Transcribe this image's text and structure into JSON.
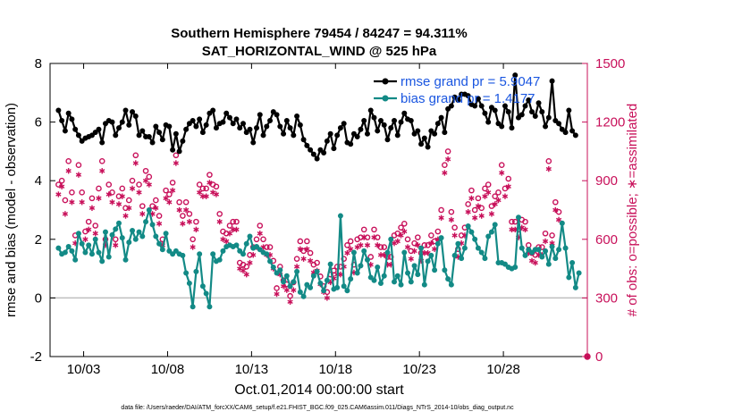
{
  "chart_data": {
    "type": "line",
    "title": "Southern Hemisphere 79454 / 84247 = 94.311%",
    "subtitle": "SAT_HORIZONTAL_WIND @ 525 hPa",
    "xlabel": "Oct.01,2014 00:00:00 start",
    "ylabel": "rmse and bias (model - observation)",
    "ylabel_right": "# of obs: o=possible; ∗=assimilated",
    "footnote": "data file: /Users/raeder/DAI/ATM_forcXX/CAM6_setup/f.e21.FHIST_BGC.f09_025.CAM6assim.011/Diags_NTrS_2014-10/obs_diag_output.nc",
    "x_ticks": [
      "10/03",
      "10/08",
      "10/13",
      "10/18",
      "10/23",
      "10/28"
    ],
    "y_ticks": [
      -2,
      0,
      2,
      4,
      6,
      8
    ],
    "y2_ticks": [
      0,
      300,
      600,
      900,
      1200,
      1500
    ],
    "ylim": [
      -2,
      8
    ],
    "y2lim": [
      0,
      1500
    ],
    "xlim_days": [
      1,
      33
    ],
    "grid": false,
    "legend_position": "top-right",
    "colors": {
      "rmse": "#000000",
      "bias": "#138a86",
      "obs": "#c8105a",
      "zero_line": "#bfbfbf"
    },
    "series": [
      {
        "name": "rmse grand pr = 5.9047",
        "values": [
          6.4,
          6.05,
          5.7,
          6.3,
          6.1,
          5.75,
          5.55,
          5.35,
          5.45,
          5.5,
          5.55,
          5.65,
          5.75,
          5.3,
          5.95,
          6.05,
          6.0,
          5.55,
          5.8,
          6.0,
          6.4,
          5.9,
          6.35,
          6.2,
          5.55,
          5.7,
          5.5,
          5.5,
          5.3,
          5.85,
          5.65,
          5.4,
          5.9,
          5.85,
          5.05,
          5.6,
          5.0,
          5.35,
          5.75,
          5.95,
          6.05,
          5.85,
          6.1,
          5.65,
          5.9,
          6.3,
          6.4,
          5.8,
          5.95,
          6.0,
          6.3,
          6.15,
          5.95,
          6.1,
          5.8,
          5.95,
          5.65,
          5.75,
          5.3,
          5.8,
          6.25,
          5.55,
          5.85,
          6.05,
          6.35,
          6.25,
          5.85,
          5.6,
          6.05,
          5.8,
          5.55,
          6.2,
          5.9,
          5.4,
          5.2,
          5.05,
          4.9,
          4.75,
          5.05,
          4.95,
          5.35,
          5.6,
          5.1,
          5.55,
          5.8,
          5.95,
          5.3,
          5.25,
          5.6,
          5.5,
          5.75,
          6.05,
          5.6,
          6.4,
          6.15,
          5.7,
          6.05,
          5.9,
          5.4,
          5.8,
          6.05,
          5.55,
          6.0,
          6.3,
          6.1,
          6.05,
          5.6,
          5.7,
          5.25,
          5.45,
          5.15,
          5.7,
          5.6,
          5.95,
          6.15,
          5.65,
          6.45,
          6.55,
          6.85,
          6.75,
          6.95,
          6.95,
          6.9,
          6.6,
          6.55,
          6.8,
          6.55,
          6.3,
          6.0,
          6.5,
          6.4,
          5.95,
          5.85,
          6.55,
          6.35,
          5.8,
          7.6,
          6.15,
          6.25,
          6.55,
          6.75,
          6.35,
          6.2,
          6.65,
          6.35,
          5.85,
          6.15,
          7.4,
          6.05,
          5.95,
          5.75,
          5.65,
          6.4,
          5.7,
          5.55
        ]
      },
      {
        "name": "bias grand pr = 1.4177",
        "values": [
          1.7,
          1.5,
          1.55,
          1.75,
          1.6,
          1.3,
          2.2,
          1.85,
          1.55,
          1.8,
          1.5,
          2.0,
          1.55,
          1.25,
          2.25,
          1.4,
          2.15,
          2.35,
          2.55,
          2.05,
          1.3,
          1.9,
          2.3,
          2.0,
          2.25,
          2.1,
          2.6,
          3.0,
          2.5,
          2.1,
          1.85,
          1.65,
          2.2,
          1.6,
          1.5,
          1.6,
          1.5,
          1.45,
          0.85,
          0.5,
          -0.3,
          0.9,
          1.5,
          0.4,
          0.15,
          -0.3,
          1.5,
          1.25,
          1.3,
          1.6,
          1.75,
          1.8,
          1.75,
          1.8,
          1.6,
          1.5,
          1.85,
          2.1,
          1.7,
          1.75,
          1.65,
          1.55,
          1.5,
          1.25,
          1.05,
          0.85,
          0.95,
          0.55,
          0.75,
          0.4,
          0.55,
          0.9,
          0.2,
          0.05,
          0.45,
          0.35,
          0.75,
          0.9,
          0.5,
          0.25,
          0.6,
          1.15,
          0.3,
          0.35,
          2.8,
          0.4,
          0.25,
          0.65,
          1.55,
          0.85,
          1.1,
          1.6,
          1.3,
          0.7,
          0.6,
          1.05,
          0.5,
          0.75,
          1.55,
          2.0,
          0.55,
          0.75,
          0.45,
          1.55,
          0.85,
          0.55,
          1.1,
          0.8,
          1.7,
          0.45,
          1.25,
          1.45,
          0.95,
          1.85,
          2.05,
          0.95,
          0.65,
          0.45,
          1.45,
          1.85,
          1.35,
          1.7,
          2.45,
          2.25,
          2.0,
          1.7,
          1.55,
          1.35,
          2.1,
          2.25,
          2.5,
          1.2,
          1.2,
          1.15,
          1.05,
          1.0,
          1.05,
          2.75,
          1.7,
          1.45,
          1.65,
          1.55,
          1.65,
          1.65,
          1.4,
          1.6,
          1.15,
          1.75,
          1.35,
          1.65,
          2.55,
          1.7,
          0.7,
          1.2,
          0.35,
          0.85
        ]
      },
      {
        "name": "possible",
        "values": [
          880,
          900,
          800,
          1000,
          840,
          620,
          980,
          840,
          640,
          690,
          810,
          670,
          860,
          1000,
          600,
          880,
          840,
          600,
          820,
          860,
          760,
          800,
          900,
          1030,
          880,
          770,
          950,
          920,
          770,
          800,
          720,
          600,
          850,
          830,
          890,
          1030,
          790,
          720,
          790,
          730,
          600,
          690,
          880,
          860,
          860,
          930,
          880,
          870,
          730,
          640,
          630,
          670,
          690,
          690,
          480,
          470,
          460,
          520,
          560,
          600,
          670,
          600,
          560,
          560,
          490,
          350,
          460,
          390,
          370,
          310,
          380,
          500,
          590,
          540,
          590,
          530,
          470,
          480,
          410,
          360,
          330,
          420,
          440,
          460,
          460,
          500,
          570,
          590,
          470,
          600,
          610,
          650,
          610,
          510,
          650,
          610,
          560,
          560,
          510,
          510,
          620,
          630,
          660,
          680,
          600,
          540,
          580,
          610,
          530,
          570,
          570,
          620,
          590,
          640,
          750,
          980,
          1050,
          740,
          660,
          550,
          620,
          660,
          780,
          850,
          750,
          810,
          760,
          860,
          880,
          770,
          820,
          840,
          980,
          860,
          910,
          690,
          690,
          650,
          700,
          690,
          570,
          530,
          520,
          560,
          560,
          630,
          1000,
          620,
          790,
          740
        ]
      },
      {
        "name": "assimilated",
        "values": [
          830,
          870,
          730,
          950,
          790,
          580,
          930,
          790,
          600,
          650,
          760,
          630,
          810,
          950,
          570,
          830,
          790,
          570,
          780,
          820,
          720,
          760,
          860,
          990,
          840,
          730,
          900,
          880,
          730,
          760,
          680,
          570,
          810,
          790,
          850,
          990,
          750,
          680,
          750,
          690,
          560,
          650,
          840,
          820,
          820,
          890,
          840,
          830,
          690,
          600,
          590,
          630,
          650,
          650,
          450,
          440,
          420,
          480,
          520,
          560,
          630,
          560,
          520,
          520,
          450,
          320,
          420,
          360,
          340,
          280,
          340,
          460,
          550,
          500,
          550,
          490,
          430,
          440,
          370,
          330,
          300,
          380,
          400,
          420,
          420,
          460,
          530,
          550,
          430,
          560,
          570,
          610,
          570,
          470,
          610,
          570,
          520,
          520,
          470,
          470,
          580,
          590,
          620,
          640,
          560,
          500,
          540,
          570,
          490,
          530,
          530,
          580,
          550,
          600,
          710,
          940,
          1010,
          700,
          620,
          510,
          580,
          620,
          740,
          810,
          710,
          770,
          720,
          820,
          840,
          730,
          780,
          800,
          940,
          820,
          870,
          650,
          650,
          610,
          660,
          650,
          530,
          490,
          480,
          520,
          520,
          590,
          960,
          580,
          750,
          700
        ]
      }
    ]
  }
}
